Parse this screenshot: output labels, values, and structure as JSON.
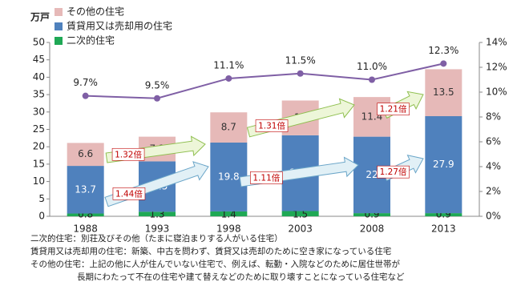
{
  "chart_data": {
    "type": "bar",
    "y_label": "万戸",
    "categories": [
      "1988",
      "1993",
      "1998",
      "2003",
      "2008",
      "2013"
    ],
    "series": [
      {
        "name": "二次的住宅",
        "color": "#1fa855",
        "values": [
          0.8,
          1.3,
          1.4,
          1.5,
          0.9,
          0.9
        ]
      },
      {
        "name": "賃貸用又は売却用の住宅",
        "color": "#4f81bd",
        "values": [
          13.7,
          14.5,
          19.8,
          21.8,
          22.0,
          27.9
        ]
      },
      {
        "name": "その他の住宅",
        "color": "#e6b9b8",
        "values": [
          6.6,
          7.1,
          8.7,
          10.0,
          11.4,
          13.5
        ]
      }
    ],
    "line": {
      "color": "#7f5fa5",
      "axis": "y2",
      "values": [
        9.7,
        9.5,
        11.1,
        11.5,
        11.0,
        12.3
      ],
      "value_labels": [
        "9.7%",
        "9.5%",
        "11.1%",
        "11.5%",
        "11.0%",
        "12.3%"
      ]
    },
    "ylim": [
      0,
      50
    ],
    "yticks": [
      0,
      5,
      10,
      15,
      20,
      25,
      30,
      35,
      40,
      45,
      50
    ],
    "y2lim": [
      0,
      14
    ],
    "y2ticks": [
      {
        "value": 0,
        "label": "0%"
      },
      {
        "value": 2,
        "label": "2%"
      },
      {
        "value": 4,
        "label": "4%"
      },
      {
        "value": 6,
        "label": "6%"
      },
      {
        "value": 8,
        "label": "8%"
      },
      {
        "value": 10,
        "label": "10%"
      },
      {
        "value": 12,
        "label": "12%"
      },
      {
        "value": 14,
        "label": "14%"
      }
    ],
    "annotations": [
      "1.32倍",
      "1.44倍",
      "1.31倍",
      "1.11倍",
      "1.21倍",
      "1.27倍"
    ],
    "notes": [
      "二次的住宅：別荘及びその他（たまに寝泊まりする人がいる住宅）",
      "賃貸用又は売却用の住宅：新築、中古を問わず、賃貸又は売却のために空き家になっている住宅",
      "その他の住宅：上記の他に人が住んでいない住宅で、例えば、転勤・入院などのために居住世帯が",
      "長期にわたって不在の住宅や建て替えなどのために取り壊すことになっている住宅など"
    ]
  }
}
